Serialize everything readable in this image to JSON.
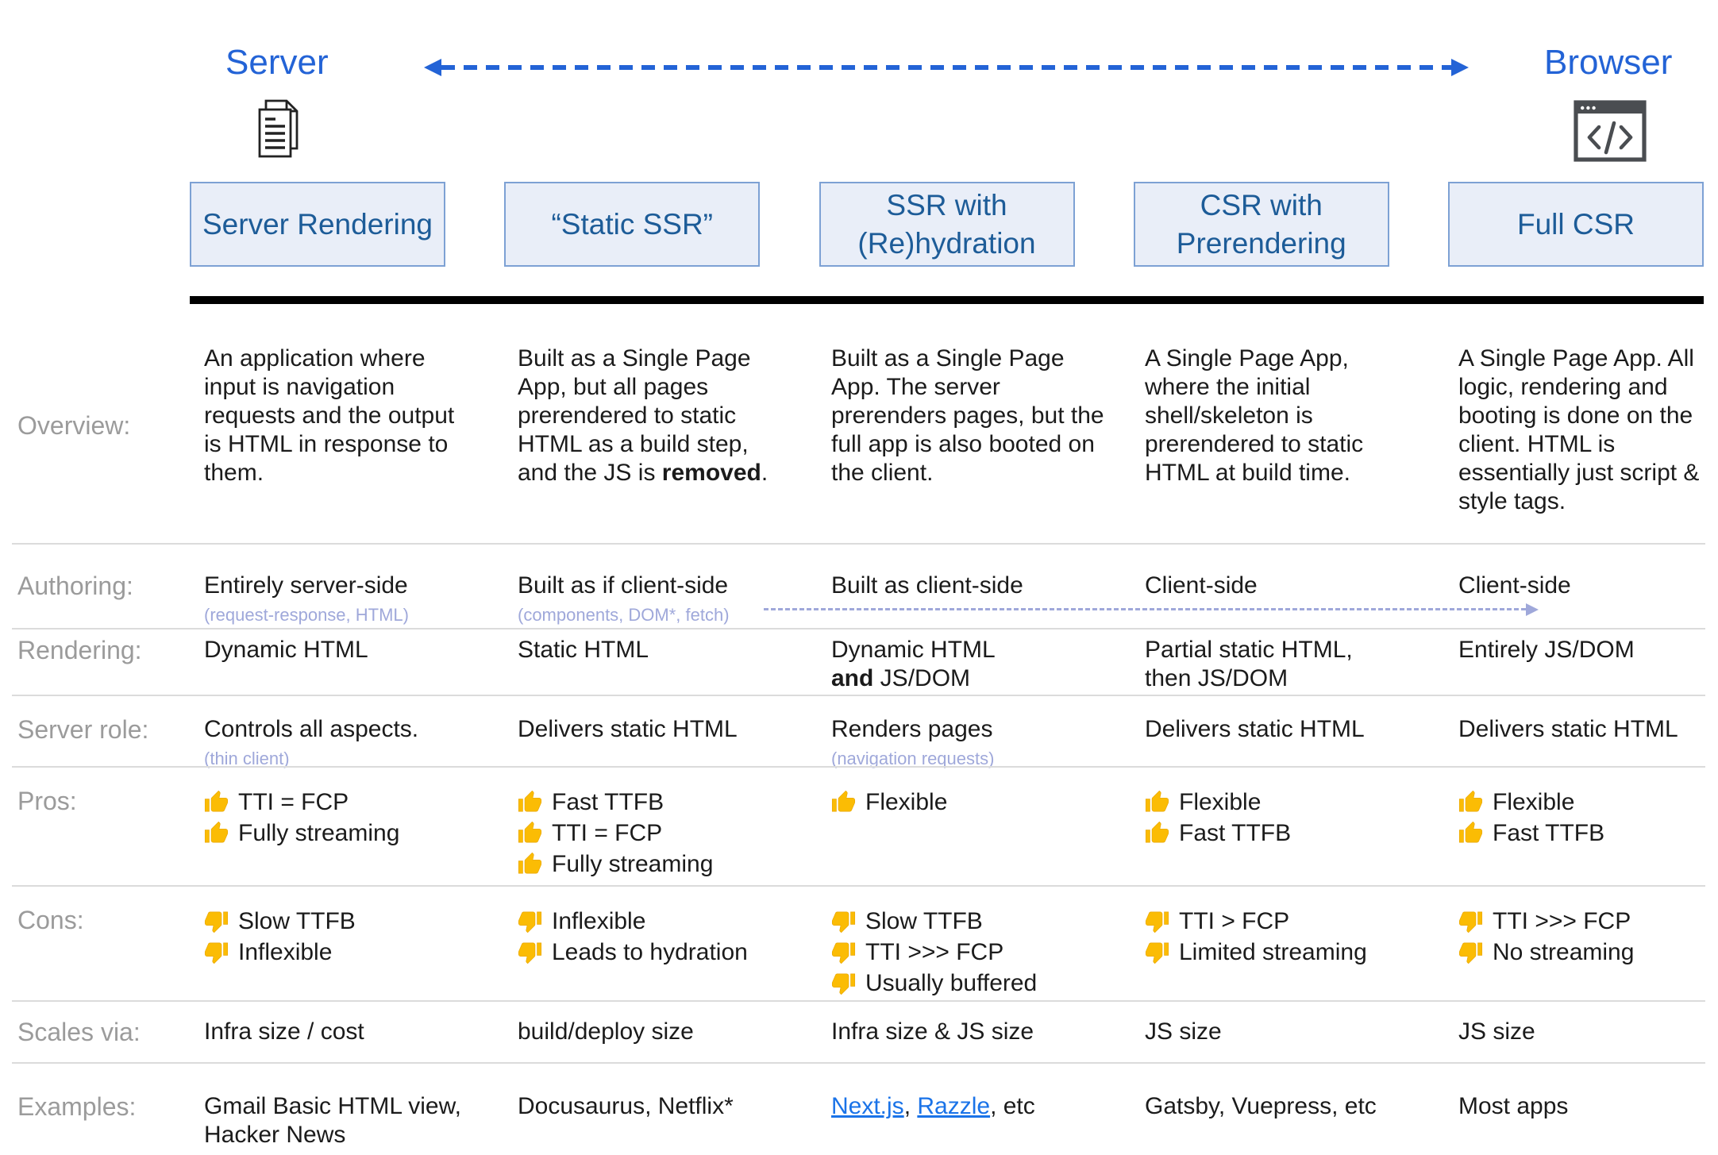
{
  "colors": {
    "accent_blue": "#2363d6",
    "column_header_text": "#1d5c98",
    "column_header_bg": "#e9eef8",
    "column_header_border": "#7da1d4",
    "row_label_gray": "#9b9b9b",
    "note_purple": "#9fa8da",
    "thumb_gold": "#fbbc04",
    "link_blue": "#1a73e8",
    "divider_gray": "#dbdbdb"
  },
  "top": {
    "server_label": "Server",
    "browser_label": "Browser",
    "server_icon": "document-pages-icon",
    "browser_icon": "browser-code-icon",
    "arrow_icon": "server-browser-dashed-arrow"
  },
  "columns": [
    {
      "title": "Server Rendering"
    },
    {
      "title": "“Static SSR”"
    },
    {
      "title": "SSR with\n(Re)hydration"
    },
    {
      "title": "CSR with\nPrerendering"
    },
    {
      "title": "Full CSR"
    }
  ],
  "rows": {
    "overview": {
      "label": "Overview:",
      "c1": "An application where input is navigation requests and the output is HTML in response to them.",
      "c2": [
        {
          "t": "Built as a Single Page App, but all pages prerendered to static HTML as a build step, and the JS is "
        },
        {
          "t": "removed",
          "b": true
        },
        {
          "t": "."
        }
      ],
      "c3": "Built as a Single Page App. The server prerenders pages, but the full app is also booted on the client.",
      "c4": "A Single Page App, where the initial shell/skeleton is prerendered to static HTML at build time.",
      "c5": "A Single Page App. All logic, rendering and booting is done on the client. HTML is essentially just script & style tags."
    },
    "authoring": {
      "label": "Authoring:",
      "c1": "Entirely server-side",
      "c1_note": "(request-response, HTML)",
      "c2": "Built as if client-side",
      "c2_note": "(components, DOM*, fetch)",
      "c3": "Built as client-side",
      "c4": "Client-side",
      "c5": "Client-side",
      "arrow_icon": "client-side-dashed-arrow"
    },
    "rendering": {
      "label": "Rendering:",
      "c1": "Dynamic HTML",
      "c2": "Static HTML",
      "c3": [
        {
          "t": "Dynamic HTML"
        },
        {
          "br": true
        },
        {
          "t": "and",
          "b": true
        },
        {
          "t": " JS/DOM"
        }
      ],
      "c4": "Partial static HTML,\nthen JS/DOM",
      "c5": "Entirely JS/DOM"
    },
    "server_role": {
      "label": "Server role:",
      "c1": "Controls all aspects.",
      "c1_note": "(thin client)",
      "c2": "Delivers static HTML",
      "c3": "Renders pages",
      "c3_note": "(navigation requests)",
      "c4": "Delivers static HTML",
      "c5": "Delivers static HTML"
    },
    "pros": {
      "label": "Pros:",
      "icon": "thumb-up-icon",
      "c1": [
        "TTI = FCP",
        "Fully streaming"
      ],
      "c2": [
        "Fast TTFB",
        "TTI = FCP",
        "Fully streaming"
      ],
      "c3": [
        "Flexible"
      ],
      "c4": [
        "Flexible",
        "Fast TTFB"
      ],
      "c5": [
        "Flexible",
        "Fast TTFB"
      ]
    },
    "cons": {
      "label": "Cons:",
      "icon": "thumb-down-icon",
      "c1": [
        "Slow TTFB",
        "Inflexible"
      ],
      "c2": [
        "Inflexible",
        "Leads to hydration"
      ],
      "c3": [
        "Slow TTFB",
        "TTI >>> FCP",
        "Usually buffered"
      ],
      "c4": [
        "TTI > FCP",
        "Limited streaming"
      ],
      "c5": [
        "TTI >>> FCP",
        "No streaming"
      ]
    },
    "scales": {
      "label": "Scales via:",
      "c1": "Infra size / cost",
      "c2": "build/deploy size",
      "c3": "Infra size & JS size",
      "c4": "JS size",
      "c5": "JS size"
    },
    "examples": {
      "label": "Examples:",
      "c1": "Gmail Basic HTML view, Hacker News",
      "c2": "Docusaurus, Netflix*",
      "c3": [
        {
          "t": "Next.js",
          "link": true
        },
        {
          "t": ", "
        },
        {
          "t": "Razzle",
          "link": true
        },
        {
          "t": ", etc"
        }
      ],
      "c4": "Gatsby, Vuepress, etc",
      "c5": "Most apps"
    }
  }
}
